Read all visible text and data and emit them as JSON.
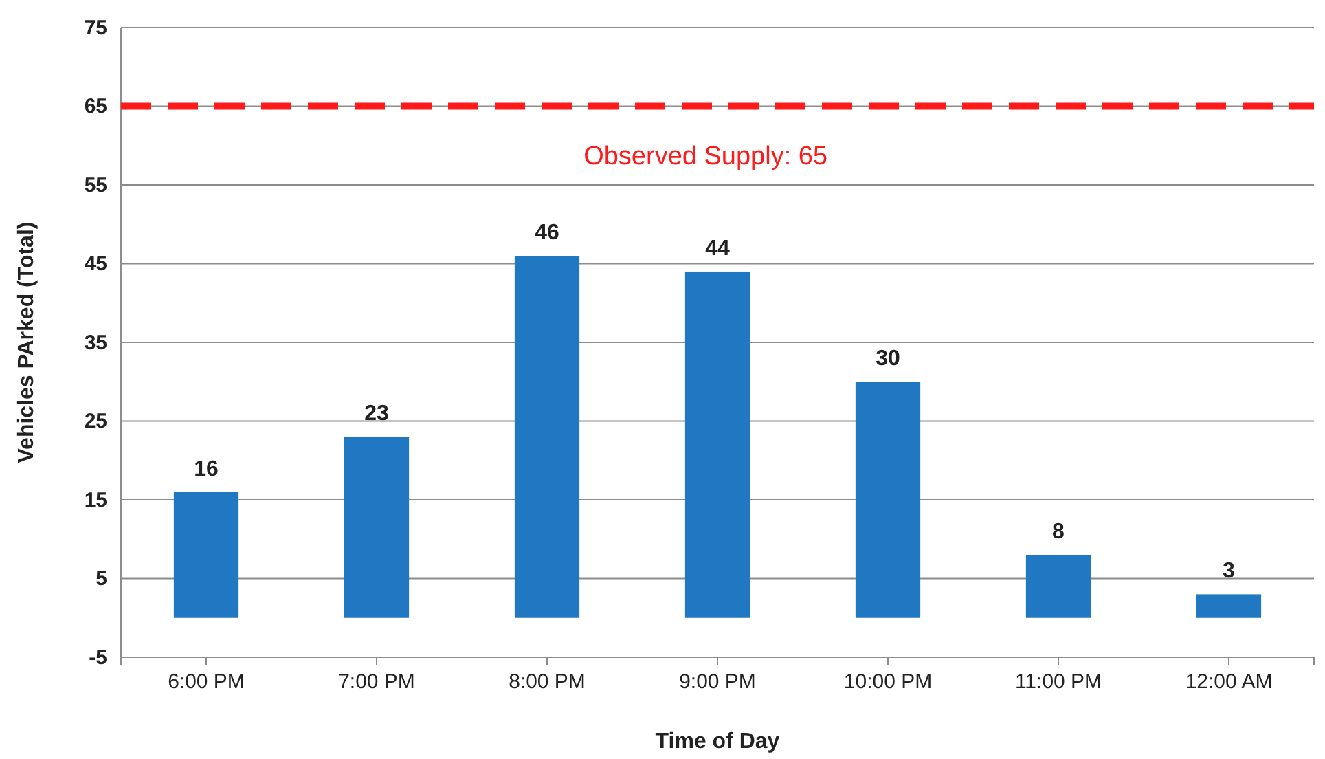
{
  "chart_data": {
    "type": "bar",
    "xlabel": "Time of Day",
    "ylabel": "Vehicles PArked (Total)",
    "categories": [
      "6:00 PM",
      "7:00 PM",
      "8:00 PM",
      "9:00 PM",
      "10:00 PM",
      "11:00 PM",
      "12:00 AM"
    ],
    "values": [
      16,
      23,
      46,
      44,
      30,
      8,
      3
    ],
    "color": "#1f78c1",
    "data_labels": true,
    "ylim": [
      -5,
      75
    ],
    "yticks": [
      -5,
      5,
      15,
      25,
      35,
      45,
      55,
      65,
      75
    ],
    "grid": "y",
    "ref_lines": [
      {
        "axis": "y",
        "value": 65,
        "label": "Observed Supply: 65",
        "color": "#ff1a1a",
        "line_style": "dashed"
      }
    ]
  }
}
